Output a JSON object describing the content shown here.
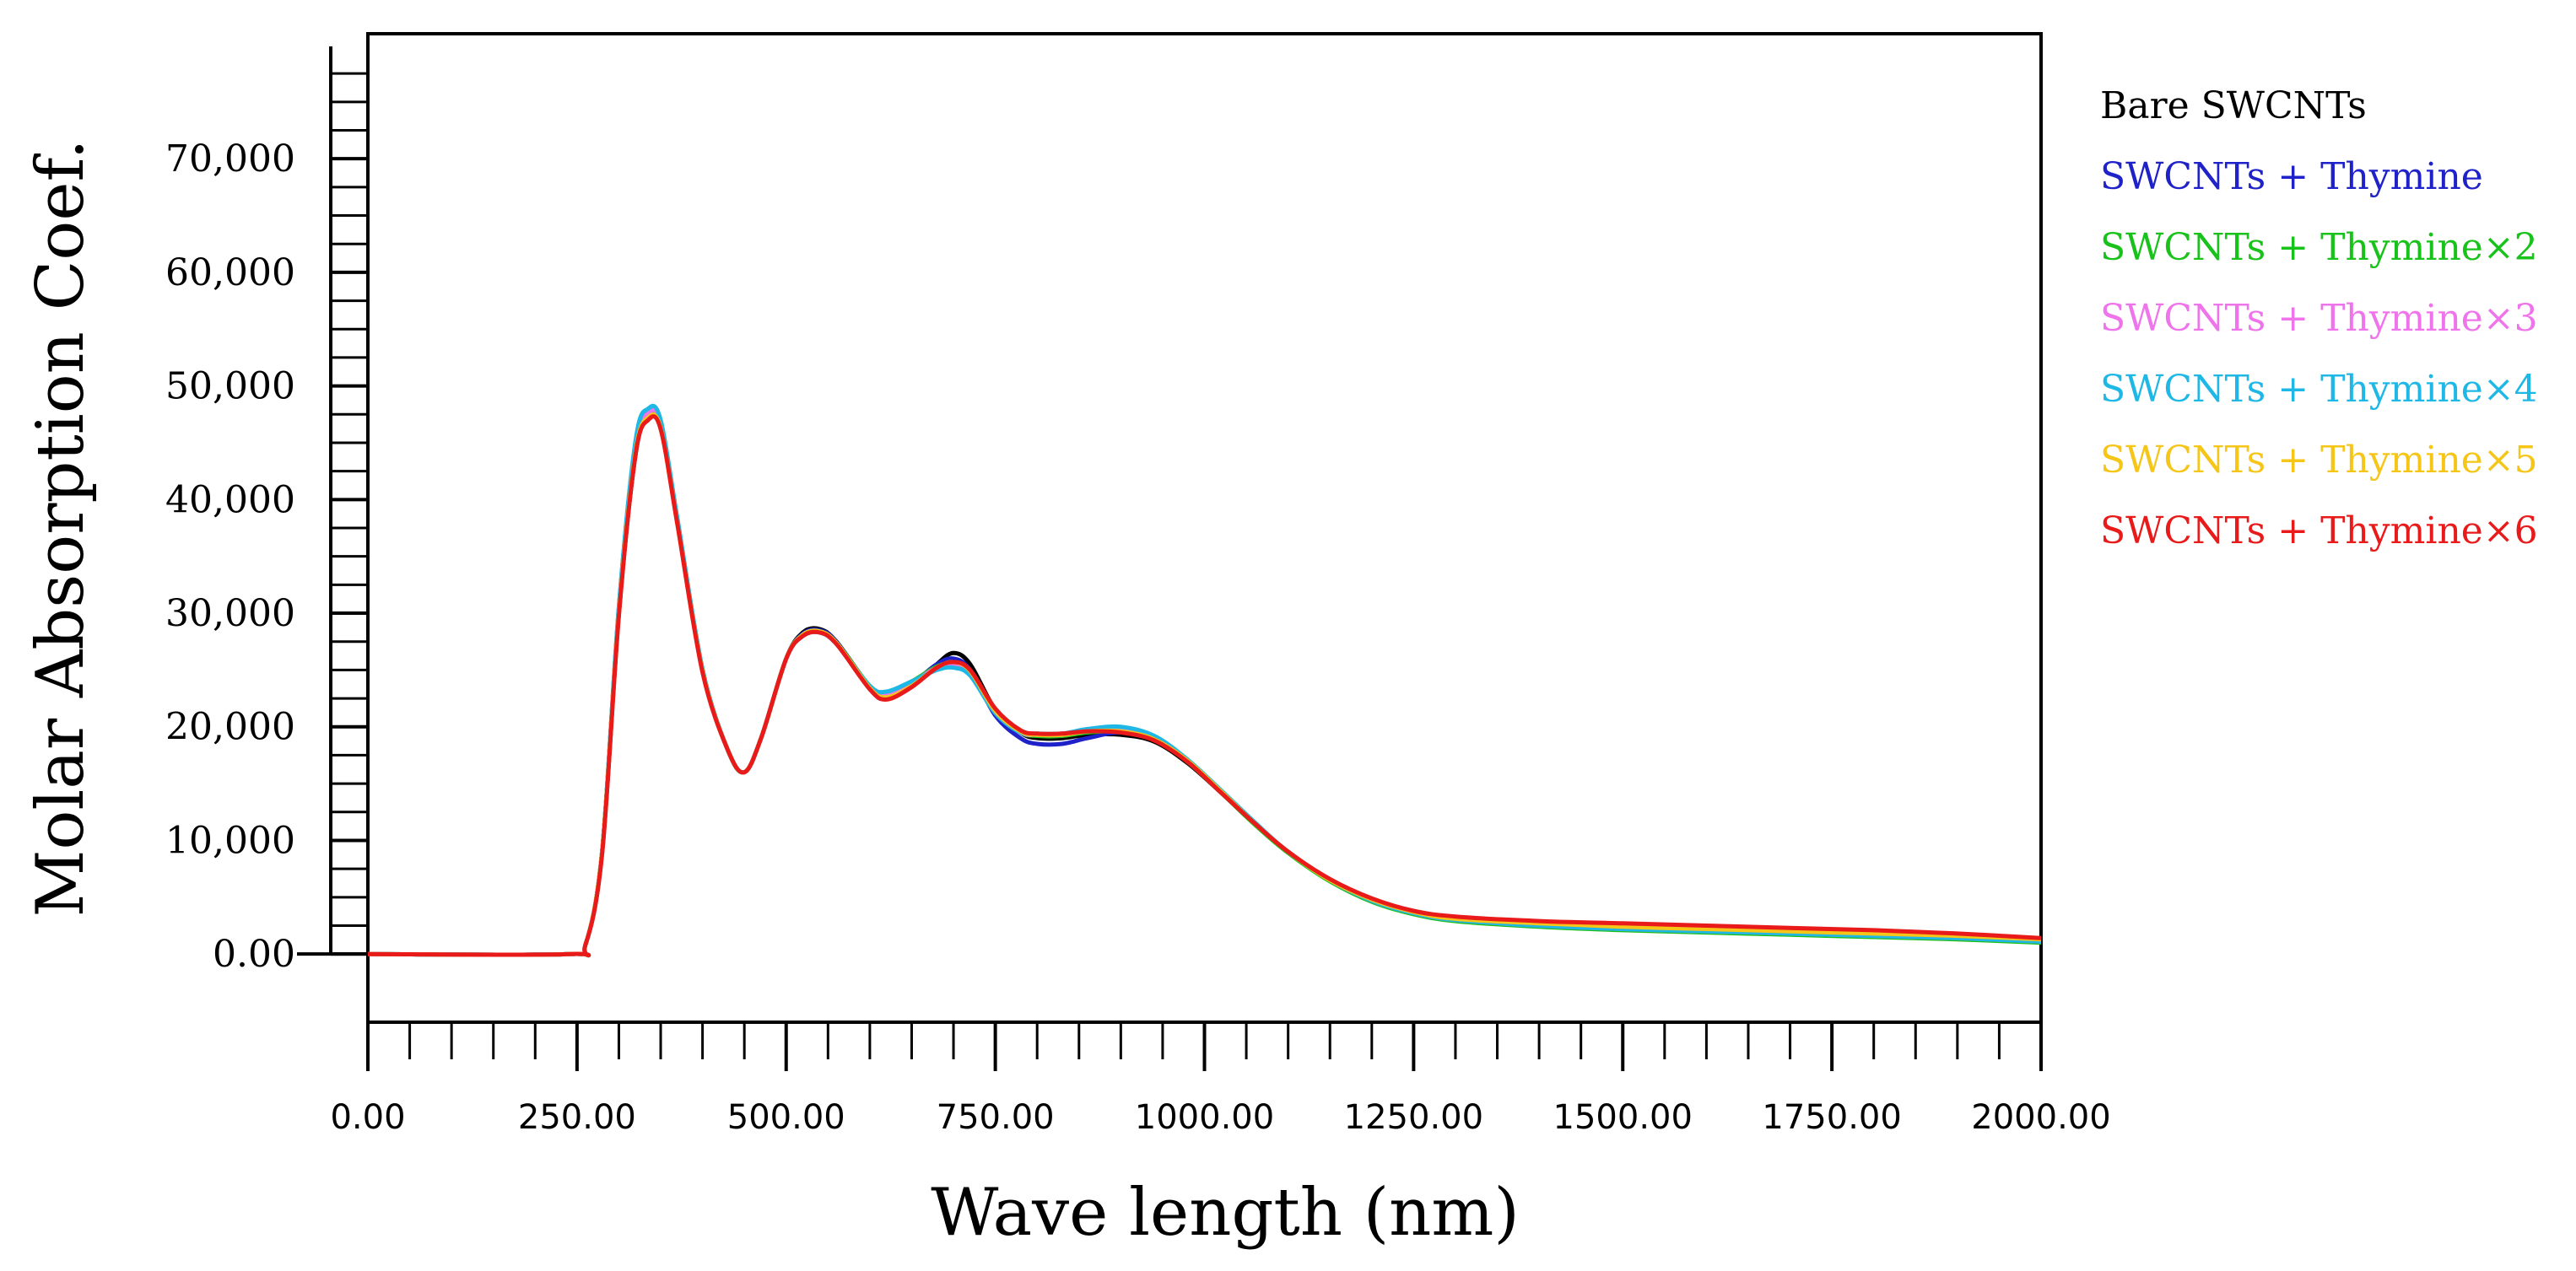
{
  "chart_data": {
    "type": "line",
    "title": "",
    "xlabel": "Wave length (nm)",
    "ylabel": "Molar Absorption Coef.",
    "xlim": [
      0,
      2000
    ],
    "ylim": [
      -6000,
      81000
    ],
    "x_tick_labels": [
      "0.00",
      "250.00",
      "500.00",
      "750.00",
      "1000.00",
      "1250.00",
      "1500.00",
      "1750.00",
      "2000.00"
    ],
    "x_tick_values": [
      0,
      250,
      500,
      750,
      1000,
      1250,
      1500,
      1750,
      2000
    ],
    "y_tick_labels": [
      "0.00",
      "10,000",
      "20,000",
      "30,000",
      "40,000",
      "50,000",
      "60,000",
      "70,000"
    ],
    "y_tick_values": [
      0,
      10000,
      20000,
      30000,
      40000,
      50000,
      60000,
      70000
    ],
    "legend_position": "right",
    "series": [
      {
        "name": "Bare SWCNTs",
        "color": "#000000",
        "x": [
          0,
          240,
          260,
          280,
          300,
          320,
          335,
          350,
          370,
          400,
          430,
          450,
          470,
          500,
          520,
          540,
          560,
          600,
          620,
          650,
          680,
          700,
          720,
          750,
          780,
          800,
          830,
          860,
          900,
          940,
          980,
          1020,
          1060,
          1100,
          1150,
          1200,
          1250,
          1300,
          1400,
          1500,
          1600,
          1700,
          1800,
          1900,
          2000
        ],
        "y": [
          0,
          0,
          800,
          9000,
          30000,
          44000,
          47300,
          46500,
          38000,
          25000,
          18000,
          16000,
          19000,
          26000,
          28300,
          28600,
          27500,
          23500,
          22500,
          23500,
          25500,
          26500,
          25500,
          21500,
          19500,
          19000,
          19000,
          19300,
          19300,
          18700,
          16800,
          14200,
          11500,
          9000,
          6500,
          4700,
          3600,
          3000,
          2500,
          2200,
          2000,
          1800,
          1600,
          1400,
          1100
        ]
      },
      {
        "name": "SWCNTs + Thymine",
        "color": "#1e22c8",
        "x": [
          0,
          240,
          260,
          280,
          300,
          320,
          335,
          350,
          370,
          400,
          430,
          450,
          470,
          500,
          520,
          540,
          560,
          600,
          620,
          650,
          680,
          700,
          720,
          750,
          780,
          800,
          830,
          860,
          900,
          940,
          980,
          1020,
          1060,
          1100,
          1150,
          1200,
          1250,
          1300,
          1400,
          1500,
          1600,
          1700,
          1800,
          1900,
          2000
        ],
        "y": [
          0,
          0,
          800,
          9000,
          30500,
          45000,
          47800,
          46800,
          38200,
          25000,
          18000,
          16000,
          19000,
          26000,
          28200,
          28500,
          27500,
          23500,
          22700,
          23800,
          25500,
          26000,
          25000,
          21000,
          19000,
          18500,
          18500,
          19000,
          19500,
          18900,
          17000,
          14300,
          11500,
          9000,
          6500,
          4700,
          3600,
          3000,
          2500,
          2200,
          2000,
          1800,
          1600,
          1400,
          1100
        ]
      },
      {
        "name": "SWCNTs + Thymine×2",
        "color": "#19c21b",
        "x": [
          0,
          240,
          260,
          280,
          300,
          320,
          335,
          350,
          370,
          400,
          430,
          450,
          470,
          500,
          520,
          540,
          560,
          600,
          620,
          650,
          680,
          700,
          720,
          750,
          780,
          800,
          830,
          860,
          900,
          940,
          980,
          1020,
          1060,
          1100,
          1150,
          1200,
          1250,
          1300,
          1400,
          1500,
          1600,
          1700,
          1800,
          1900,
          2000
        ],
        "y": [
          0,
          0,
          800,
          9000,
          30200,
          44500,
          47500,
          46600,
          38000,
          25000,
          18000,
          16000,
          19000,
          26000,
          28100,
          28400,
          27400,
          23600,
          23000,
          24000,
          25300,
          25600,
          24800,
          21300,
          19500,
          19200,
          19200,
          19500,
          19600,
          18900,
          16900,
          14200,
          11400,
          8900,
          6400,
          4600,
          3500,
          2900,
          2400,
          2100,
          1900,
          1700,
          1500,
          1300,
          1000
        ]
      },
      {
        "name": "SWCNTs + Thymine×3",
        "color": "#ef74ec",
        "x": [
          0,
          240,
          260,
          280,
          300,
          320,
          335,
          350,
          370,
          400,
          430,
          450,
          470,
          500,
          520,
          540,
          560,
          600,
          620,
          650,
          680,
          700,
          720,
          750,
          780,
          800,
          830,
          860,
          900,
          940,
          980,
          1020,
          1060,
          1100,
          1150,
          1200,
          1250,
          1300,
          1400,
          1500,
          1600,
          1700,
          1800,
          1900,
          2000
        ],
        "y": [
          0,
          0,
          800,
          9000,
          30200,
          44600,
          47600,
          46700,
          38100,
          25000,
          18000,
          16000,
          19000,
          26000,
          28000,
          28300,
          27300,
          23500,
          22900,
          23900,
          25200,
          25500,
          24800,
          21300,
          19500,
          19300,
          19300,
          19600,
          19700,
          19000,
          17000,
          14300,
          11500,
          9000,
          6500,
          4700,
          3600,
          3000,
          2500,
          2200,
          2000,
          1800,
          1600,
          1400,
          1100
        ]
      },
      {
        "name": "SWCNTs + Thymine×4",
        "color": "#1fb8e6",
        "x": [
          0,
          240,
          260,
          280,
          300,
          320,
          335,
          350,
          370,
          400,
          430,
          450,
          470,
          500,
          520,
          540,
          560,
          600,
          620,
          650,
          680,
          700,
          720,
          750,
          780,
          800,
          830,
          860,
          900,
          940,
          980,
          1020,
          1060,
          1100,
          1150,
          1200,
          1250,
          1300,
          1400,
          1500,
          1600,
          1700,
          1800,
          1900,
          2000
        ],
        "y": [
          0,
          0,
          800,
          9000,
          30600,
          45200,
          48000,
          47000,
          38300,
          25100,
          18000,
          16000,
          19000,
          26000,
          28000,
          28300,
          27300,
          23600,
          23100,
          24000,
          25000,
          25200,
          24500,
          21200,
          19500,
          19400,
          19400,
          19800,
          20000,
          19200,
          17100,
          14400,
          11600,
          9000,
          6500,
          4700,
          3600,
          3000,
          2500,
          2200,
          2000,
          1800,
          1600,
          1400,
          1100
        ]
      },
      {
        "name": "SWCNTs + Thymine×5",
        "color": "#f5c518",
        "x": [
          0,
          240,
          260,
          280,
          300,
          320,
          335,
          350,
          370,
          400,
          430,
          450,
          470,
          500,
          520,
          540,
          560,
          600,
          620,
          650,
          680,
          700,
          720,
          750,
          780,
          800,
          830,
          860,
          900,
          940,
          980,
          1020,
          1060,
          1100,
          1150,
          1200,
          1250,
          1300,
          1400,
          1500,
          1600,
          1700,
          1800,
          1900,
          2000
        ],
        "y": [
          0,
          0,
          800,
          9000,
          30000,
          44200,
          47200,
          46300,
          37800,
          24900,
          18000,
          16000,
          19000,
          26000,
          28100,
          28400,
          27400,
          23400,
          22600,
          23600,
          25200,
          25700,
          24900,
          21400,
          19600,
          19300,
          19300,
          19600,
          19600,
          18900,
          17000,
          14300,
          11500,
          9000,
          6500,
          4800,
          3700,
          3100,
          2700,
          2400,
          2200,
          2000,
          1800,
          1600,
          1300
        ]
      },
      {
        "name": "SWCNTs + Thymine×6",
        "color": "#e81a1a",
        "x": [
          0,
          240,
          260,
          280,
          300,
          320,
          335,
          350,
          370,
          400,
          430,
          450,
          470,
          500,
          520,
          540,
          560,
          600,
          620,
          650,
          680,
          700,
          720,
          750,
          780,
          800,
          830,
          860,
          900,
          940,
          980,
          1020,
          1060,
          1100,
          1150,
          1200,
          1250,
          1300,
          1400,
          1500,
          1600,
          1700,
          1800,
          1900,
          2000
        ],
        "y": [
          0,
          0,
          800,
          8800,
          29800,
          44000,
          47000,
          46200,
          37800,
          24800,
          18000,
          16000,
          19000,
          26000,
          28000,
          28300,
          27300,
          23300,
          22400,
          23500,
          25200,
          25700,
          25000,
          21600,
          19700,
          19400,
          19400,
          19600,
          19500,
          18800,
          16900,
          14200,
          11500,
          9000,
          6600,
          4900,
          3800,
          3300,
          2900,
          2700,
          2500,
          2300,
          2100,
          1800,
          1400
        ]
      }
    ]
  }
}
